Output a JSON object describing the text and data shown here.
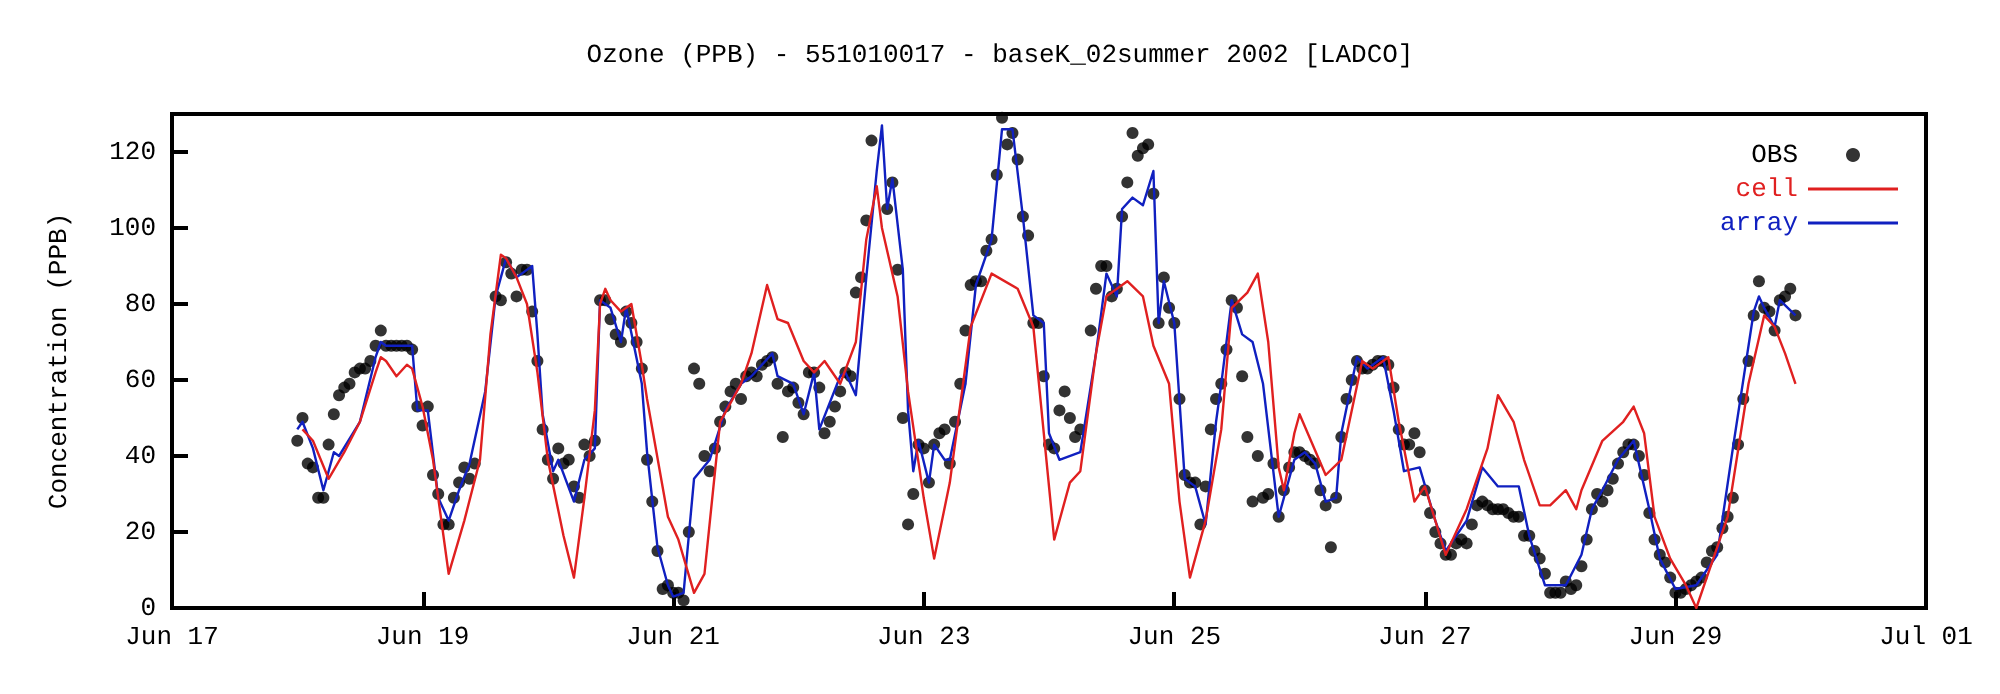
{
  "chart_data": {
    "type": "line",
    "title": "Ozone (PPB) - 551010017 - baseK_02summer 2002 [LADCO]",
    "ylabel": "Concentration (PPB)",
    "xlim": [
      "2002-06-17",
      "2002-07-01"
    ],
    "xticks": [
      {
        "value": "2002-06-17",
        "label": "Jun 17"
      },
      {
        "value": "2002-06-19",
        "label": "Jun 19"
      },
      {
        "value": "2002-06-21",
        "label": "Jun 21"
      },
      {
        "value": "2002-06-23",
        "label": "Jun 23"
      },
      {
        "value": "2002-06-25",
        "label": "Jun 25"
      },
      {
        "value": "2002-06-27",
        "label": "Jun 27"
      },
      {
        "value": "2002-06-29",
        "label": "Jun 29"
      },
      {
        "value": "2002-07-01",
        "label": "Jul 01"
      }
    ],
    "ylim": [
      0,
      130
    ],
    "yticks": [
      0,
      20,
      40,
      60,
      80,
      100,
      120
    ],
    "grid": false,
    "legend": "top right",
    "line_style": "solid",
    "series": [
      {
        "name": "OBS",
        "type": "scatter",
        "marker": "circle",
        "color": "#000000",
        "x": [
          "2002-06-18T00:00",
          "2002-06-18T01:00",
          "2002-06-18T02:00",
          "2002-06-18T03:00",
          "2002-06-18T04:00",
          "2002-06-18T05:00",
          "2002-06-18T06:00",
          "2002-06-18T07:00",
          "2002-06-18T08:00",
          "2002-06-18T09:00",
          "2002-06-18T10:00",
          "2002-06-18T11:00",
          "2002-06-18T12:00",
          "2002-06-18T13:00",
          "2002-06-18T14:00",
          "2002-06-18T15:00",
          "2002-06-18T16:00",
          "2002-06-18T17:00",
          "2002-06-18T18:00",
          "2002-06-18T19:00",
          "2002-06-18T20:00",
          "2002-06-18T21:00",
          "2002-06-18T22:00",
          "2002-06-18T23:00",
          "2002-06-19T00:00",
          "2002-06-19T01:00",
          "2002-06-19T02:00",
          "2002-06-19T03:00",
          "2002-06-19T04:00",
          "2002-06-19T05:00",
          "2002-06-19T06:00",
          "2002-06-19T07:00",
          "2002-06-19T08:00",
          "2002-06-19T09:00",
          "2002-06-19T10:00",
          "2002-06-19T14:00",
          "2002-06-19T15:00",
          "2002-06-19T16:00",
          "2002-06-19T17:00",
          "2002-06-19T18:00",
          "2002-06-19T19:00",
          "2002-06-19T20:00",
          "2002-06-19T21:00",
          "2002-06-19T22:00",
          "2002-06-19T23:00",
          "2002-06-20T00:00",
          "2002-06-20T01:00",
          "2002-06-20T02:00",
          "2002-06-20T03:00",
          "2002-06-20T04:00",
          "2002-06-20T05:00",
          "2002-06-20T06:00",
          "2002-06-20T07:00",
          "2002-06-20T08:00",
          "2002-06-20T09:00",
          "2002-06-20T10:00",
          "2002-06-20T11:00",
          "2002-06-20T12:00",
          "2002-06-20T13:00",
          "2002-06-20T14:00",
          "2002-06-20T15:00",
          "2002-06-20T16:00",
          "2002-06-20T17:00",
          "2002-06-20T18:00",
          "2002-06-20T19:00",
          "2002-06-20T20:00",
          "2002-06-20T21:00",
          "2002-06-20T22:00",
          "2002-06-20T23:00",
          "2002-06-21T00:00",
          "2002-06-21T01:00",
          "2002-06-21T02:00",
          "2002-06-21T03:00",
          "2002-06-21T04:00",
          "2002-06-21T05:00",
          "2002-06-21T06:00",
          "2002-06-21T07:00",
          "2002-06-21T08:00",
          "2002-06-21T09:00",
          "2002-06-21T10:00",
          "2002-06-21T11:00",
          "2002-06-21T12:00",
          "2002-06-21T13:00",
          "2002-06-21T14:00",
          "2002-06-21T15:00",
          "2002-06-21T16:00",
          "2002-06-21T17:00",
          "2002-06-21T18:00",
          "2002-06-21T19:00",
          "2002-06-21T20:00",
          "2002-06-21T21:00",
          "2002-06-21T22:00",
          "2002-06-21T23:00",
          "2002-06-22T00:00",
          "2002-06-22T01:00",
          "2002-06-22T02:00",
          "2002-06-22T03:00",
          "2002-06-22T04:00",
          "2002-06-22T05:00",
          "2002-06-22T06:00",
          "2002-06-22T07:00",
          "2002-06-22T08:00",
          "2002-06-22T09:00",
          "2002-06-22T10:00",
          "2002-06-22T11:00",
          "2002-06-22T12:00",
          "2002-06-22T13:00",
          "2002-06-22T14:00",
          "2002-06-22T17:00",
          "2002-06-22T18:00",
          "2002-06-22T19:00",
          "2002-06-22T20:00",
          "2002-06-22T21:00",
          "2002-06-22T22:00",
          "2002-06-22T23:00",
          "2002-06-23T00:00",
          "2002-06-23T01:00",
          "2002-06-23T02:00",
          "2002-06-23T03:00",
          "2002-06-23T04:00",
          "2002-06-23T05:00",
          "2002-06-23T06:00",
          "2002-06-23T07:00",
          "2002-06-23T08:00",
          "2002-06-23T09:00",
          "2002-06-23T10:00",
          "2002-06-23T11:00",
          "2002-06-23T12:00",
          "2002-06-23T13:00",
          "2002-06-23T14:00",
          "2002-06-23T15:00",
          "2002-06-23T16:00",
          "2002-06-23T17:00",
          "2002-06-23T18:00",
          "2002-06-23T19:00",
          "2002-06-23T20:00",
          "2002-06-23T21:00",
          "2002-06-23T22:00",
          "2002-06-23T23:00",
          "2002-06-24T00:00",
          "2002-06-24T01:00",
          "2002-06-24T02:00",
          "2002-06-24T03:00",
          "2002-06-24T04:00",
          "2002-06-24T05:00",
          "2002-06-24T06:00",
          "2002-06-24T08:00",
          "2002-06-24T09:00",
          "2002-06-24T10:00",
          "2002-06-24T11:00",
          "2002-06-24T12:00",
          "2002-06-24T13:00",
          "2002-06-24T14:00",
          "2002-06-24T15:00",
          "2002-06-24T16:00",
          "2002-06-24T17:00",
          "2002-06-24T18:00",
          "2002-06-24T19:00",
          "2002-06-24T20:00",
          "2002-06-24T21:00",
          "2002-06-24T22:00",
          "2002-06-24T23:00",
          "2002-06-25T00:00",
          "2002-06-25T01:00",
          "2002-06-25T02:00",
          "2002-06-25T03:00",
          "2002-06-25T04:00",
          "2002-06-25T05:00",
          "2002-06-25T06:00",
          "2002-06-25T07:00",
          "2002-06-25T08:00",
          "2002-06-25T09:00",
          "2002-06-25T10:00",
          "2002-06-25T11:00",
          "2002-06-25T12:00",
          "2002-06-25T13:00",
          "2002-06-25T14:00",
          "2002-06-25T15:00",
          "2002-06-25T16:00",
          "2002-06-25T17:00",
          "2002-06-25T18:00",
          "2002-06-25T19:00",
          "2002-06-25T20:00",
          "2002-06-25T21:00",
          "2002-06-25T22:00",
          "2002-06-25T23:00",
          "2002-06-26T00:00",
          "2002-06-26T01:00",
          "2002-06-26T02:00",
          "2002-06-26T03:00",
          "2002-06-26T04:00",
          "2002-06-26T05:00",
          "2002-06-26T06:00",
          "2002-06-26T07:00",
          "2002-06-26T08:00",
          "2002-06-26T09:00",
          "2002-06-26T10:00",
          "2002-06-26T11:00",
          "2002-06-26T12:00",
          "2002-06-26T13:00",
          "2002-06-26T14:00",
          "2002-06-26T15:00",
          "2002-06-26T16:00",
          "2002-06-26T17:00",
          "2002-06-26T18:00",
          "2002-06-26T19:00",
          "2002-06-26T20:00",
          "2002-06-26T21:00",
          "2002-06-26T22:00",
          "2002-06-26T23:00",
          "2002-06-27T00:00",
          "2002-06-27T01:00",
          "2002-06-27T02:00",
          "2002-06-27T03:00",
          "2002-06-27T04:00",
          "2002-06-27T05:00",
          "2002-06-27T06:00",
          "2002-06-27T07:00",
          "2002-06-27T08:00",
          "2002-06-27T09:00",
          "2002-06-27T10:00",
          "2002-06-27T11:00",
          "2002-06-27T12:00",
          "2002-06-27T13:00",
          "2002-06-27T14:00",
          "2002-06-27T15:00",
          "2002-06-27T16:00",
          "2002-06-27T17:00",
          "2002-06-27T18:00",
          "2002-06-27T19:00",
          "2002-06-27T20:00",
          "2002-06-27T21:00",
          "2002-06-27T22:00",
          "2002-06-27T23:00",
          "2002-06-28T00:00",
          "2002-06-28T01:00",
          "2002-06-28T02:00",
          "2002-06-28T03:00",
          "2002-06-28T04:00",
          "2002-06-28T05:00",
          "2002-06-28T06:00",
          "2002-06-28T07:00",
          "2002-06-28T08:00",
          "2002-06-28T09:00",
          "2002-06-28T10:00",
          "2002-06-28T11:00",
          "2002-06-28T12:00",
          "2002-06-28T13:00",
          "2002-06-28T14:00",
          "2002-06-28T15:00",
          "2002-06-28T16:00",
          "2002-06-28T17:00",
          "2002-06-28T18:00",
          "2002-06-28T19:00",
          "2002-06-28T20:00",
          "2002-06-28T21:00",
          "2002-06-28T22:00",
          "2002-06-28T23:00",
          "2002-06-29T00:00",
          "2002-06-29T01:00",
          "2002-06-29T02:00",
          "2002-06-29T03:00",
          "2002-06-29T04:00",
          "2002-06-29T05:00",
          "2002-06-29T06:00",
          "2002-06-29T07:00",
          "2002-06-29T08:00",
          "2002-06-29T09:00",
          "2002-06-29T10:00",
          "2002-06-29T11:00",
          "2002-06-29T12:00",
          "2002-06-29T13:00",
          "2002-06-29T14:00",
          "2002-06-29T15:00",
          "2002-06-29T16:00",
          "2002-06-29T17:00",
          "2002-06-29T18:00",
          "2002-06-29T19:00",
          "2002-06-29T20:00",
          "2002-06-29T21:00",
          "2002-06-29T22:00",
          "2002-06-29T23:00"
        ],
        "values": [
          44,
          50,
          38,
          37,
          29,
          29,
          43,
          51,
          56,
          58,
          59,
          62,
          63,
          63,
          65,
          69,
          73,
          69,
          69,
          69,
          69,
          69,
          68,
          53,
          48,
          53,
          35,
          30,
          22,
          22,
          29,
          33,
          37,
          34,
          38,
          82,
          81,
          91,
          88,
          82,
          89,
          89,
          78,
          65,
          47,
          39,
          34,
          42,
          38,
          39,
          32,
          29,
          43,
          40,
          44,
          81,
          81,
          76,
          72,
          70,
          78,
          75,
          70,
          63,
          39,
          28,
          15,
          5,
          6,
          4,
          4,
          2,
          20,
          63,
          59,
          40,
          36,
          42,
          49,
          53,
          57,
          59,
          55,
          61,
          62,
          61,
          64,
          65,
          66,
          59,
          45,
          57,
          58,
          54,
          51,
          62,
          62,
          58,
          46,
          49,
          53,
          57,
          62,
          61,
          83,
          87,
          102,
          123,
          105,
          112,
          89,
          50,
          22,
          30,
          43,
          42,
          33,
          43,
          46,
          47,
          38,
          49,
          59,
          73,
          85,
          86,
          86,
          94,
          97,
          114,
          129,
          122,
          125,
          118,
          103,
          98,
          75,
          75,
          61,
          43,
          42,
          52,
          57,
          50,
          45,
          47,
          73,
          84,
          90,
          90,
          82,
          84,
          103,
          112,
          125,
          119,
          121,
          122,
          109,
          75,
          87,
          79,
          75,
          55,
          35,
          33,
          33,
          22,
          32,
          47,
          55,
          59,
          68,
          81,
          79,
          61,
          45,
          28,
          40,
          29,
          30,
          38,
          24,
          31,
          37,
          41,
          41,
          40,
          39,
          38,
          31,
          27,
          16,
          29,
          45,
          55,
          60,
          65,
          63,
          63,
          64,
          65,
          65,
          64,
          58,
          47,
          43,
          43,
          46,
          41,
          31,
          25,
          20,
          17,
          14,
          14,
          17,
          18,
          17,
          22,
          27,
          28,
          27,
          26,
          26,
          26,
          25,
          24,
          24,
          19,
          19,
          15,
          13,
          9,
          4,
          4,
          4,
          7,
          5,
          6,
          11,
          18,
          26,
          30,
          28,
          31,
          34,
          38,
          41,
          43,
          43,
          40,
          35,
          25,
          18,
          14,
          12,
          8,
          4,
          4,
          5,
          6,
          7,
          8,
          12,
          15,
          16,
          21,
          24,
          29,
          43,
          55,
          65,
          77,
          86,
          79,
          78,
          73,
          81,
          82,
          84,
          77
        ]
      },
      {
        "name": "cell",
        "marker": "none",
        "color": "#e02020",
        "x": [
          "2002-06-18T01:00",
          "2002-06-18T03:00",
          "2002-06-18T06:00",
          "2002-06-18T09:00",
          "2002-06-18T12:00",
          "2002-06-18T15:00",
          "2002-06-18T16:00",
          "2002-06-18T17:00",
          "2002-06-18T19:00",
          "2002-06-18T21:00",
          "2002-06-18T22:00",
          "2002-06-19T00:00",
          "2002-06-19T02:00",
          "2002-06-19T05:00",
          "2002-06-19T08:00",
          "2002-06-19T11:00",
          "2002-06-19T13:00",
          "2002-06-19T15:00",
          "2002-06-19T16:00",
          "2002-06-19T18:00",
          "2002-06-19T20:00",
          "2002-06-19T22:00",
          "2002-06-20T00:00",
          "2002-06-20T03:00",
          "2002-06-20T05:00",
          "2002-06-20T07:00",
          "2002-06-20T09:00",
          "2002-06-20T10:00",
          "2002-06-20T11:00",
          "2002-06-20T12:00",
          "2002-06-20T14:00",
          "2002-06-20T16:00",
          "2002-06-20T18:00",
          "2002-06-20T19:00",
          "2002-06-20T23:00",
          "2002-06-21T01:00",
          "2002-06-21T04:00",
          "2002-06-21T06:00",
          "2002-06-21T09:00",
          "2002-06-21T13:00",
          "2002-06-21T15:00",
          "2002-06-21T18:00",
          "2002-06-21T20:00",
          "2002-06-21T22:00",
          "2002-06-22T01:00",
          "2002-06-22T03:00",
          "2002-06-22T05:00",
          "2002-06-22T08:00",
          "2002-06-22T11:00",
          "2002-06-22T13:00",
          "2002-06-22T15:00",
          "2002-06-22T16:00",
          "2002-06-22T19:00",
          "2002-06-22T21:00",
          "2002-06-23T00:00",
          "2002-06-23T02:00",
          "2002-06-23T05:00",
          "2002-06-23T09:00",
          "2002-06-23T13:00",
          "2002-06-23T18:00",
          "2002-06-23T21:00",
          "2002-06-23T23:00",
          "2002-06-24T01:00",
          "2002-06-24T04:00",
          "2002-06-24T06:00",
          "2002-06-24T09:00",
          "2002-06-24T11:00",
          "2002-06-24T15:00",
          "2002-06-24T18:00",
          "2002-06-24T20:00",
          "2002-06-24T23:00",
          "2002-06-25T01:00",
          "2002-06-25T03:00",
          "2002-06-25T06:00",
          "2002-06-25T09:00",
          "2002-06-25T11:00",
          "2002-06-25T14:00",
          "2002-06-25T16:00",
          "2002-06-25T18:00",
          "2002-06-25T20:00",
          "2002-06-25T21:00",
          "2002-06-25T23:00",
          "2002-06-26T00:00",
          "2002-06-26T05:00",
          "2002-06-26T08:00",
          "2002-06-26T12:00",
          "2002-06-26T14:00",
          "2002-06-26T17:00",
          "2002-06-26T19:00",
          "2002-06-26T22:00",
          "2002-06-27T00:00",
          "2002-06-27T04:00",
          "2002-06-27T08:00",
          "2002-06-27T12:00",
          "2002-06-27T14:00",
          "2002-06-27T17:00",
          "2002-06-27T19:00",
          "2002-06-27T22:00",
          "2002-06-28T00:00",
          "2002-06-28T03:00",
          "2002-06-28T05:00",
          "2002-06-28T06:00",
          "2002-06-28T10:00",
          "2002-06-28T14:00",
          "2002-06-28T16:00",
          "2002-06-28T18:00",
          "2002-06-28T20:00",
          "2002-06-28T23:00",
          "2002-06-29T02:00",
          "2002-06-29T04:00",
          "2002-06-29T06:00",
          "2002-06-29T10:00",
          "2002-06-29T14:00",
          "2002-06-29T17:00",
          "2002-06-29T19:00",
          "2002-06-29T21:00",
          "2002-06-29T23:00"
        ],
        "values": [
          47,
          44,
          34,
          41,
          49,
          62,
          66,
          65,
          61,
          64,
          63,
          53,
          39,
          9,
          23,
          39,
          72,
          93,
          92,
          87,
          80,
          62,
          39,
          19,
          8,
          29,
          52,
          80,
          84,
          81,
          78,
          80,
          64,
          55,
          24,
          18,
          4,
          9,
          49,
          59,
          67,
          85,
          76,
          75,
          65,
          62,
          65,
          59,
          70,
          97,
          111,
          100,
          82,
          57,
          29,
          13,
          33,
          74,
          88,
          84,
          74,
          46,
          18,
          33,
          36,
          67,
          82,
          86,
          82,
          69,
          59,
          28,
          8,
          23,
          47,
          79,
          83,
          88,
          70,
          37,
          31,
          46,
          51,
          35,
          39,
          65,
          63,
          66,
          49,
          28,
          32,
          14,
          26,
          42,
          56,
          49,
          39,
          27,
          27,
          31,
          26,
          31,
          44,
          49,
          53,
          46,
          24,
          13,
          6,
          0,
          8,
          24,
          59,
          77,
          74,
          67,
          59
        ]
      },
      {
        "name": "array",
        "marker": "none",
        "color": "#1020c0",
        "x": [
          "2002-06-18T00:00",
          "2002-06-18T01:00",
          "2002-06-18T03:00",
          "2002-06-18T05:00",
          "2002-06-18T07:00",
          "2002-06-18T08:00",
          "2002-06-18T12:00",
          "2002-06-18T15:00",
          "2002-06-18T16:00",
          "2002-06-18T17:00",
          "2002-06-18T22:00",
          "2002-06-18T23:00",
          "2002-06-19T01:00",
          "2002-06-19T03:00",
          "2002-06-19T05:00",
          "2002-06-19T07:00",
          "2002-06-19T09:00",
          "2002-06-19T12:00",
          "2002-06-19T14:00",
          "2002-06-19T16:00",
          "2002-06-19T18:00",
          "2002-06-19T19:00",
          "2002-06-19T21:00",
          "2002-06-19T22:00",
          "2002-06-19T23:00",
          "2002-06-20T01:00",
          "2002-06-20T02:00",
          "2002-06-20T05:00",
          "2002-06-20T07:00",
          "2002-06-20T09:00",
          "2002-06-20T10:00",
          "2002-06-20T12:00",
          "2002-06-20T14:00",
          "2002-06-20T15:00",
          "2002-06-20T18:00",
          "2002-06-20T19:00",
          "2002-06-20T21:00",
          "2002-06-20T23:00",
          "2002-06-21T00:00",
          "2002-06-21T02:00",
          "2002-06-21T03:00",
          "2002-06-21T04:00",
          "2002-06-21T07:00",
          "2002-06-21T10:00",
          "2002-06-21T13:00",
          "2002-06-21T15:00",
          "2002-06-21T19:00",
          "2002-06-21T20:00",
          "2002-06-21T23:00",
          "2002-06-22T01:00",
          "2002-06-22T03:00",
          "2002-06-22T04:00",
          "2002-06-22T08:00",
          "2002-06-22T09:00",
          "2002-06-22T11:00",
          "2002-06-22T13:00",
          "2002-06-22T15:00",
          "2002-06-22T16:00",
          "2002-06-22T17:00",
          "2002-06-22T18:00",
          "2002-06-22T20:00",
          "2002-06-22T21:00",
          "2002-06-22T22:00",
          "2002-06-22T23:00",
          "2002-06-23T01:00",
          "2002-06-23T02:00",
          "2002-06-23T04:00",
          "2002-06-23T05:00",
          "2002-06-23T08:00",
          "2002-06-23T10:00",
          "2002-06-23T13:00",
          "2002-06-23T15:00",
          "2002-06-23T17:00",
          "2002-06-23T19:00",
          "2002-06-23T21:00",
          "2002-06-23T23:00",
          "2002-06-24T00:00",
          "2002-06-24T02:00",
          "2002-06-24T06:00",
          "2002-06-24T09:00",
          "2002-06-24T11:00",
          "2002-06-24T13:00",
          "2002-06-24T14:00",
          "2002-06-24T16:00",
          "2002-06-24T18:00",
          "2002-06-24T20:00",
          "2002-06-24T21:00",
          "2002-06-24T22:00",
          "2002-06-25T00:00",
          "2002-06-25T02:00",
          "2002-06-25T04:00",
          "2002-06-25T06:00",
          "2002-06-25T08:00",
          "2002-06-25T09:00",
          "2002-06-25T11:00",
          "2002-06-25T13:00",
          "2002-06-25T15:00",
          "2002-06-25T17:00",
          "2002-06-25T20:00",
          "2002-06-25T23:00",
          "2002-06-26T01:00",
          "2002-06-26T03:00",
          "2002-06-26T05:00",
          "2002-06-26T07:00",
          "2002-06-26T08:00",
          "2002-06-26T11:00",
          "2002-06-26T13:00",
          "2002-06-26T16:00",
          "2002-06-26T18:00",
          "2002-06-26T20:00",
          "2002-06-26T23:00",
          "2002-06-27T02:00",
          "2002-06-27T04:00",
          "2002-06-27T08:00",
          "2002-06-27T11:00",
          "2002-06-27T14:00",
          "2002-06-27T18:00",
          "2002-06-27T20:00",
          "2002-06-27T23:00",
          "2002-06-28T03:00",
          "2002-06-28T06:00",
          "2002-06-28T08:00",
          "2002-06-28T10:00",
          "2002-06-28T13:00",
          "2002-06-28T16:00",
          "2002-06-28T19:00",
          "2002-06-28T21:00",
          "2002-06-29T00:00",
          "2002-06-29T04:00",
          "2002-06-29T08:00",
          "2002-06-29T11:00",
          "2002-06-29T15:00",
          "2002-06-29T16:00",
          "2002-06-29T17:00",
          "2002-06-29T19:00",
          "2002-06-29T20:00",
          "2002-06-29T23:00"
        ],
        "values": [
          47,
          49,
          42,
          31,
          41,
          40,
          49,
          66,
          70,
          69,
          69,
          52,
          52,
          29,
          23,
          31,
          38,
          57,
          82,
          92,
          87,
          88,
          90,
          72,
          51,
          36,
          39,
          28,
          39,
          42,
          81,
          79,
          70,
          79,
          59,
          41,
          16,
          6,
          3,
          4,
          19,
          34,
          39,
          52,
          59,
          61,
          67,
          61,
          59,
          51,
          62,
          47,
          61,
          62,
          56,
          87,
          115,
          127,
          105,
          113,
          89,
          52,
          36,
          44,
          33,
          43,
          39,
          39,
          59,
          85,
          97,
          126,
          126,
          103,
          77,
          75,
          46,
          39,
          41,
          67,
          88,
          82,
          105,
          108,
          106,
          115,
          75,
          86,
          75,
          34,
          32,
          22,
          49,
          59,
          81,
          72,
          70,
          59,
          24,
          39,
          41,
          38,
          28,
          29,
          46,
          66,
          63,
          66,
          52,
          36,
          37,
          23,
          15,
          23,
          37,
          32,
          32,
          19,
          6,
          6,
          14,
          26,
          31,
          39,
          44,
          26,
          13,
          5,
          6,
          14,
          42,
          78,
          82,
          79,
          74,
          81,
          77
        ]
      }
    ]
  }
}
